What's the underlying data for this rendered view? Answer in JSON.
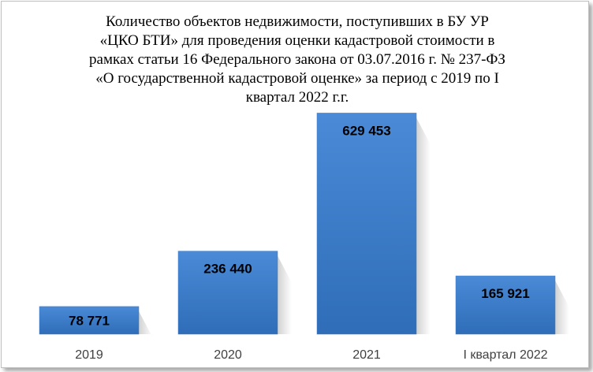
{
  "chart_data": {
    "type": "bar",
    "title_lines": [
      "Количество объектов недвижимости, поступивших в БУ УР",
      "«ЦКО БТИ» для проведения оценки кадастровой стоимости в",
      "рамках статьи 16 Федерального закона от 03.07.2016 г. № 237-ФЗ",
      "«О государственной кадастровой оценке» за период с 2019 по I",
      "квартал 2022 г.г."
    ],
    "categories": [
      "2019",
      "2020",
      "2021",
      "I квартал 2022"
    ],
    "values": [
      78771,
      236440,
      629453,
      165921
    ],
    "data_labels": [
      "78 771",
      "236 440",
      "629 453",
      "165 921"
    ],
    "xlabel": "",
    "ylabel": "",
    "ylim": [
      0,
      700000
    ],
    "grid": false,
    "legend": "none",
    "bar_color": "#3f7fcc"
  }
}
